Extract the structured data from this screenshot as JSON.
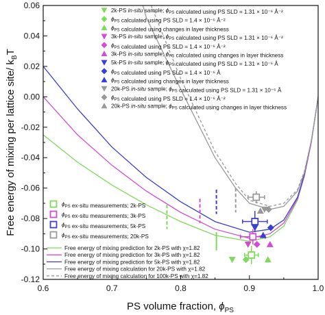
{
  "chart_data": {
    "type": "line",
    "xlabel": "PS volume fraction, ϕPS",
    "ylabel": "Free energy of mixing per lattice site/ kBT",
    "xlim": [
      0.6,
      1.0
    ],
    "ylim": [
      -0.12,
      0.06
    ],
    "x_ticks": [
      "0.6",
      "0.7",
      "0.8",
      "0.9",
      "1.0"
    ],
    "y_ticks": [
      "0.06",
      "0.04",
      "0.02",
      "0.00",
      "-0.02",
      "-0.04",
      "-0.06",
      "-0.08",
      "-0.10",
      "-0.12"
    ],
    "curve_series": [
      {
        "name": "Free energy of mixing prediction for 2k-PS with χ=1.82",
        "color": "#7fd95a",
        "dash": false,
        "x": [
          0.6,
          0.65,
          0.7,
          0.75,
          0.8,
          0.85,
          0.9,
          0.93,
          0.95,
          0.97,
          0.98,
          0.99,
          0.995,
          1.0
        ],
        "y": [
          -0.025,
          -0.043,
          -0.058,
          -0.071,
          -0.082,
          -0.091,
          -0.095,
          -0.092,
          -0.085,
          -0.068,
          -0.052,
          -0.03,
          -0.015,
          0.0
        ]
      },
      {
        "name": "Free energy of mixing prediction for 3k-PS with χ=1.82",
        "color": "#d24bd2",
        "dash": false,
        "x": [
          0.6,
          0.65,
          0.7,
          0.75,
          0.8,
          0.85,
          0.9,
          0.93,
          0.95,
          0.97,
          0.98,
          0.99,
          0.995,
          1.0
        ],
        "y": [
          0.0,
          -0.025,
          -0.045,
          -0.062,
          -0.076,
          -0.087,
          -0.093,
          -0.09,
          -0.083,
          -0.067,
          -0.052,
          -0.03,
          -0.015,
          0.0
        ]
      },
      {
        "name": "Free energy of mixing prediction for 5k-PS with χ=1.82",
        "color": "#3a3fcf",
        "dash": false,
        "x": [
          0.6,
          0.65,
          0.7,
          0.75,
          0.8,
          0.85,
          0.9,
          0.93,
          0.95,
          0.97,
          0.98,
          0.99,
          0.995,
          1.0
        ],
        "y": [
          0.02,
          -0.008,
          -0.033,
          -0.053,
          -0.069,
          -0.082,
          -0.089,
          -0.087,
          -0.081,
          -0.066,
          -0.051,
          -0.029,
          -0.015,
          0.0
        ]
      },
      {
        "name": "Free energy of mixing calculation for 20k-PS with χ=1.82",
        "color": "#999999",
        "dash": false,
        "x": [
          0.745,
          0.75,
          0.8,
          0.85,
          0.88,
          0.9,
          0.93,
          0.95,
          0.97,
          0.98,
          0.99,
          0.995,
          1.0
        ],
        "y": [
          0.06,
          0.052,
          0.005,
          -0.04,
          -0.06,
          -0.07,
          -0.074,
          -0.072,
          -0.062,
          -0.05,
          -0.029,
          -0.015,
          0.0
        ]
      },
      {
        "name": "Free energy of mixing calculation for 100k-PS with χ=1.82",
        "color": "#999999",
        "dash": true,
        "x": [
          0.757,
          0.8,
          0.85,
          0.88,
          0.9,
          0.93,
          0.95,
          0.97,
          0.98,
          0.99,
          0.995,
          1.0
        ],
        "y": [
          0.06,
          0.012,
          -0.036,
          -0.057,
          -0.068,
          -0.072,
          -0.07,
          -0.061,
          -0.049,
          -0.029,
          -0.015,
          0.0
        ]
      }
    ],
    "spinodal_bars": [
      {
        "x": 0.78,
        "y": -0.079,
        "color": "#7fd95a"
      },
      {
        "x": 0.828,
        "y": -0.075,
        "color": "#d24bd2"
      },
      {
        "x": 0.852,
        "y": -0.069,
        "color": "#3a3fcf"
      },
      {
        "x": 0.88,
        "y": -0.068,
        "color": "#999999"
      }
    ],
    "marker_points": [
      {
        "x": 0.875,
        "y": -0.107,
        "shape": "triangle-down",
        "color": "#7fd95a"
      },
      {
        "x": 0.895,
        "y": -0.107,
        "shape": "diamond",
        "color": "#7fd95a"
      },
      {
        "x": 0.927,
        "y": -0.107,
        "shape": "triangle-up",
        "color": "#7fd95a"
      },
      {
        "x": 0.898,
        "y": -0.097,
        "shape": "triangle-down",
        "color": "#d24bd2"
      },
      {
        "x": 0.911,
        "y": -0.097,
        "shape": "diamond",
        "color": "#d24bd2"
      },
      {
        "x": 0.93,
        "y": -0.097,
        "shape": "triangle-up",
        "color": "#d24bd2"
      },
      {
        "x": 0.908,
        "y": -0.086,
        "shape": "triangle-down",
        "color": "#3a3fcf"
      },
      {
        "x": 0.931,
        "y": -0.086,
        "shape": "diamond",
        "color": "#3a3fcf"
      },
      {
        "x": 0.92,
        "y": -0.091,
        "shape": "triangle-up",
        "color": "#3a3fcf"
      },
      {
        "x": 0.922,
        "y": -0.074,
        "shape": "triangle-down",
        "color": "#999999"
      },
      {
        "x": 0.928,
        "y": -0.074,
        "shape": "diamond",
        "color": "#999999"
      },
      {
        "x": 0.916,
        "y": -0.075,
        "shape": "triangle-up",
        "color": "#999999"
      }
    ],
    "square_points": [
      {
        "x": 0.903,
        "y": -0.104,
        "xerr": 0.01,
        "yerr": 0.006,
        "color": "#7fd95a"
      },
      {
        "x": 0.905,
        "y": -0.092,
        "xerr": 0.018,
        "yerr": 0.005,
        "color": "#d24bd2"
      },
      {
        "x": 0.908,
        "y": -0.082,
        "xerr": 0.018,
        "yerr": 0.007,
        "color": "#3a3fcf"
      },
      {
        "x": 0.91,
        "y": -0.066,
        "xerr": 0.012,
        "yerr": 0.004,
        "color": "#999999"
      }
    ],
    "legend_upper": [
      {
        "marker": "triangle-down",
        "color": "#7fd95a",
        "sample": "2k-PS ",
        "italic": "in-situ",
        "rest": " sample; ϕPS calculated using PS SLD = 1.31 × 10⁻⁶ Å⁻²"
      },
      {
        "marker": "diamond",
        "color": "#7fd95a",
        "sample": "",
        "italic": "",
        "rest": "ϕPS calculated using PS SLD = 1.4 × 10⁻⁶ Å⁻²"
      },
      {
        "marker": "triangle-up",
        "color": "#7fd95a",
        "sample": "",
        "italic": "",
        "rest": "ϕPS calculated using changes in layer thickness"
      },
      {
        "marker": "triangle-down",
        "color": "#d24bd2",
        "sample": "3k-PS ",
        "italic": "in-situ",
        "rest": " sample; ϕPS calculated using PS SLD = 1.31 × 10⁻⁶ Å⁻²"
      },
      {
        "marker": "diamond",
        "color": "#d24bd2",
        "sample": "",
        "italic": "",
        "rest": "ϕPS calculated using PS SLD = 1.4 × 10⁻⁶ Å⁻²"
      },
      {
        "marker": "triangle-up",
        "color": "#d24bd2",
        "sample": "3k-PS ",
        "italic": "in-situ",
        "rest": " sample; ϕPS calculated using changes in layer thickness"
      },
      {
        "marker": "triangle-down",
        "color": "#3a3fcf",
        "sample": "5k-PS ",
        "italic": "in-situ",
        "rest": " sample; ϕPS calculated using PS SLD = 1.31 × 10⁻⁶ Å"
      },
      {
        "marker": "diamond",
        "color": "#3a3fcf",
        "sample": "",
        "italic": "",
        "rest": "ϕPS calculated using PS SLD = 1.4 × 10⁻⁶ Å"
      },
      {
        "marker": "triangle-up",
        "color": "#3a3fcf",
        "sample": "",
        "italic": "",
        "rest": "ϕPS calculated using changes in layer thickness"
      },
      {
        "marker": "triangle-down",
        "color": "#999999",
        "sample": "20k-PS ",
        "italic": "in-situ",
        "rest": " sample; ϕPS calculated using PS SLD = 1.31 × 10⁻⁶ Å"
      },
      {
        "marker": "diamond",
        "color": "#999999",
        "sample": "",
        "italic": "",
        "rest": "ϕPS calculated using PS SLD = 1.4 × 10⁻⁶ Å⁻²"
      },
      {
        "marker": "triangle-up",
        "color": "#999999",
        "sample": "20k-PS ",
        "italic": "in-situ",
        "rest": " sample; ϕPS calculated using changes in layer thickness"
      }
    ],
    "legend_lower_squares": [
      {
        "color": "#7fd95a",
        "label": "ϕPS ex-situ measurements; 2k-PS"
      },
      {
        "color": "#d24bd2",
        "label": "ϕPS ex-situ measurements; 3k-PS"
      },
      {
        "color": "#3a3fcf",
        "label": "ϕPS ex-situ measurements; 5k-PS"
      },
      {
        "color": "#999999",
        "label": "ϕPS ex-situ measurements; 20k-PS"
      }
    ],
    "legend_lower_lines": [
      {
        "color": "#7fd95a",
        "dash": false,
        "label": "Free energy of mixing prediction for 2k-PS with χ=1.82"
      },
      {
        "color": "#d24bd2",
        "dash": false,
        "label": "Free energy of mixing prediction for 3k-PS with χ=1.82"
      },
      {
        "color": "#3a3fcf",
        "dash": false,
        "label": "Free energy of mixing prediction for 5k-PS with χ=1.82"
      },
      {
        "color": "#999999",
        "dash": false,
        "label": "Free energy of mixing calculation for 20k-PS with χ=1.82"
      },
      {
        "color": "#999999",
        "dash": true,
        "label": "Free energy of mixing calculation for 100k-PS with χ=1.82"
      }
    ]
  }
}
